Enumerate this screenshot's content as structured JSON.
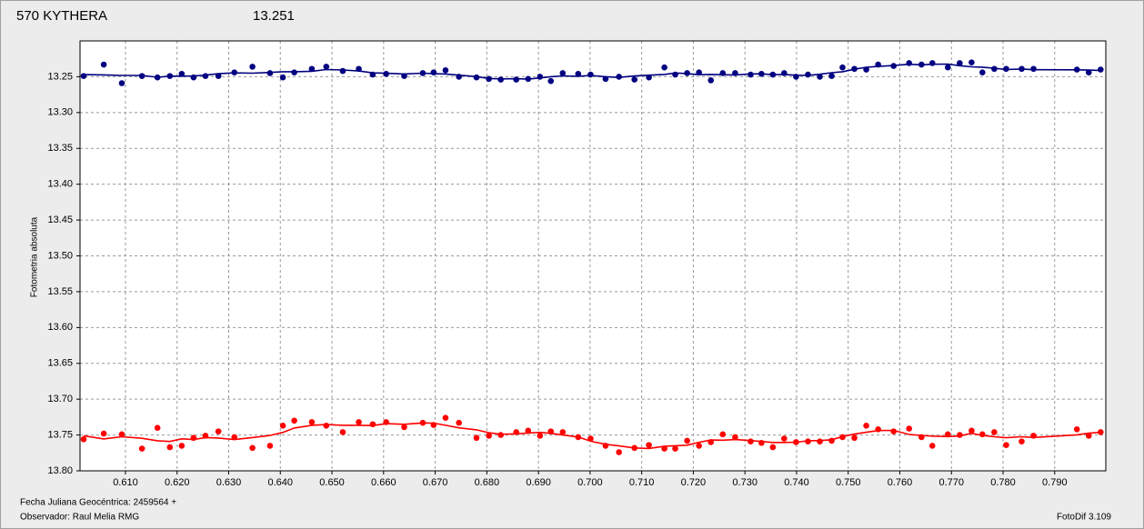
{
  "chart_data": {
    "type": "scatter",
    "title": "570 KYTHERA",
    "title_color": "#ff0000",
    "subtitle": "13.251",
    "subtitle_color": "#000080",
    "y_label": "Fotometria absoluta",
    "x_label": "Fecha Juliana Geocéntrica: 2459564 +",
    "observer": "Observador: Raul Melia RMG",
    "software": "FotoDif 3.109",
    "grid": true,
    "y_inverted": true,
    "xlim": [
      0.6012,
      0.7999
    ],
    "ylim": [
      13.2,
      13.8
    ],
    "xticks": [
      {
        "value": 0.61,
        "label": "0.610"
      },
      {
        "value": 0.62,
        "label": "0.620"
      },
      {
        "value": 0.63,
        "label": "0.630"
      },
      {
        "value": 0.64,
        "label": "0.640"
      },
      {
        "value": 0.65,
        "label": "0.650"
      },
      {
        "value": 0.66,
        "label": "0.660"
      },
      {
        "value": 0.67,
        "label": "0.670"
      },
      {
        "value": 0.68,
        "label": "0.680"
      },
      {
        "value": 0.69,
        "label": "0.690"
      },
      {
        "value": 0.7,
        "label": "0.700"
      },
      {
        "value": 0.71,
        "label": "0.710"
      },
      {
        "value": 0.72,
        "label": "0.720"
      },
      {
        "value": 0.73,
        "label": "0.730"
      },
      {
        "value": 0.74,
        "label": "0.740"
      },
      {
        "value": 0.75,
        "label": "0.750"
      },
      {
        "value": 0.76,
        "label": "0.760"
      },
      {
        "value": 0.77,
        "label": "0.770"
      },
      {
        "value": 0.78,
        "label": "0.780"
      },
      {
        "value": 0.79,
        "label": "0.790"
      }
    ],
    "yticks": [
      13.25,
      {
        "value": 13.3,
        "label": "13.30"
      },
      13.35,
      {
        "value": 13.4,
        "label": "13.40"
      },
      13.45,
      {
        "value": 13.5,
        "label": "13.50"
      },
      13.55,
      {
        "value": 13.6,
        "label": "13.60"
      },
      13.65,
      {
        "value": 13.7,
        "label": "13.70"
      },
      13.75,
      {
        "value": 13.8,
        "label": "13.80"
      }
    ],
    "x": [
      0.6019,
      0.6058,
      0.6093,
      0.6132,
      0.6162,
      0.6186,
      0.6209,
      0.6232,
      0.6255,
      0.628,
      0.6311,
      0.6346,
      0.638,
      0.6405,
      0.6427,
      0.6461,
      0.6489,
      0.6521,
      0.6552,
      0.6579,
      0.6605,
      0.664,
      0.6676,
      0.6697,
      0.672,
      0.6746,
      0.678,
      0.6804,
      0.6827,
      0.6857,
      0.688,
      0.6903,
      0.6924,
      0.6947,
      0.6977,
      0.7001,
      0.703,
      0.7056,
      0.7086,
      0.7114,
      0.7144,
      0.7165,
      0.7188,
      0.7211,
      0.7234,
      0.7257,
      0.7281,
      0.7311,
      0.7332,
      0.7354,
      0.7376,
      0.7399,
      0.7422,
      0.7445,
      0.7468,
      0.7489,
      0.7512,
      0.7535,
      0.7558,
      0.7588,
      0.7618,
      0.7642,
      0.7663,
      0.7693,
      0.7716,
      0.7739,
      0.776,
      0.7783,
      0.7806,
      0.7836,
      0.7859,
      0.7943,
      0.7966,
      0.7989
    ],
    "series": [
      {
        "color": "#000080",
        "values": [
          13.249,
          13.233,
          13.259,
          13.249,
          13.251,
          13.249,
          13.246,
          13.251,
          13.249,
          13.249,
          13.244,
          13.236,
          13.245,
          13.251,
          13.244,
          13.239,
          13.236,
          13.242,
          13.239,
          13.247,
          13.246,
          13.249,
          13.245,
          13.244,
          13.241,
          13.25,
          13.251,
          13.253,
          13.254,
          13.254,
          13.253,
          13.25,
          13.256,
          13.245,
          13.246,
          13.247,
          13.253,
          13.25,
          13.254,
          13.251,
          13.237,
          13.247,
          13.245,
          13.244,
          13.255,
          13.245,
          13.245,
          13.247,
          13.246,
          13.247,
          13.245,
          13.25,
          13.247,
          13.25,
          13.249,
          13.237,
          13.239,
          13.24,
          13.233,
          13.235,
          13.231,
          13.233,
          13.231,
          13.237,
          13.231,
          13.23,
          13.244,
          13.239,
          13.239,
          13.239,
          13.239,
          13.24,
          13.244,
          13.24
        ]
      },
      {
        "color": "#ff0000",
        "values": [
          13.756,
          13.748,
          13.749,
          13.769,
          13.74,
          13.767,
          13.765,
          13.754,
          13.751,
          13.745,
          13.753,
          13.768,
          13.765,
          13.737,
          13.73,
          13.732,
          13.737,
          13.746,
          13.732,
          13.735,
          13.732,
          13.739,
          13.733,
          13.736,
          13.726,
          13.733,
          13.754,
          13.751,
          13.75,
          13.746,
          13.744,
          13.751,
          13.745,
          13.746,
          13.753,
          13.755,
          13.765,
          13.774,
          13.768,
          13.764,
          13.769,
          13.769,
          13.758,
          13.765,
          13.76,
          13.749,
          13.753,
          13.759,
          13.761,
          13.767,
          13.755,
          13.76,
          13.759,
          13.759,
          13.758,
          13.753,
          13.754,
          13.737,
          13.742,
          13.745,
          13.741,
          13.753,
          13.765,
          13.749,
          13.75,
          13.744,
          13.749,
          13.746,
          13.764,
          13.759,
          13.751,
          13.742,
          13.751,
          13.746
        ]
      }
    ]
  }
}
